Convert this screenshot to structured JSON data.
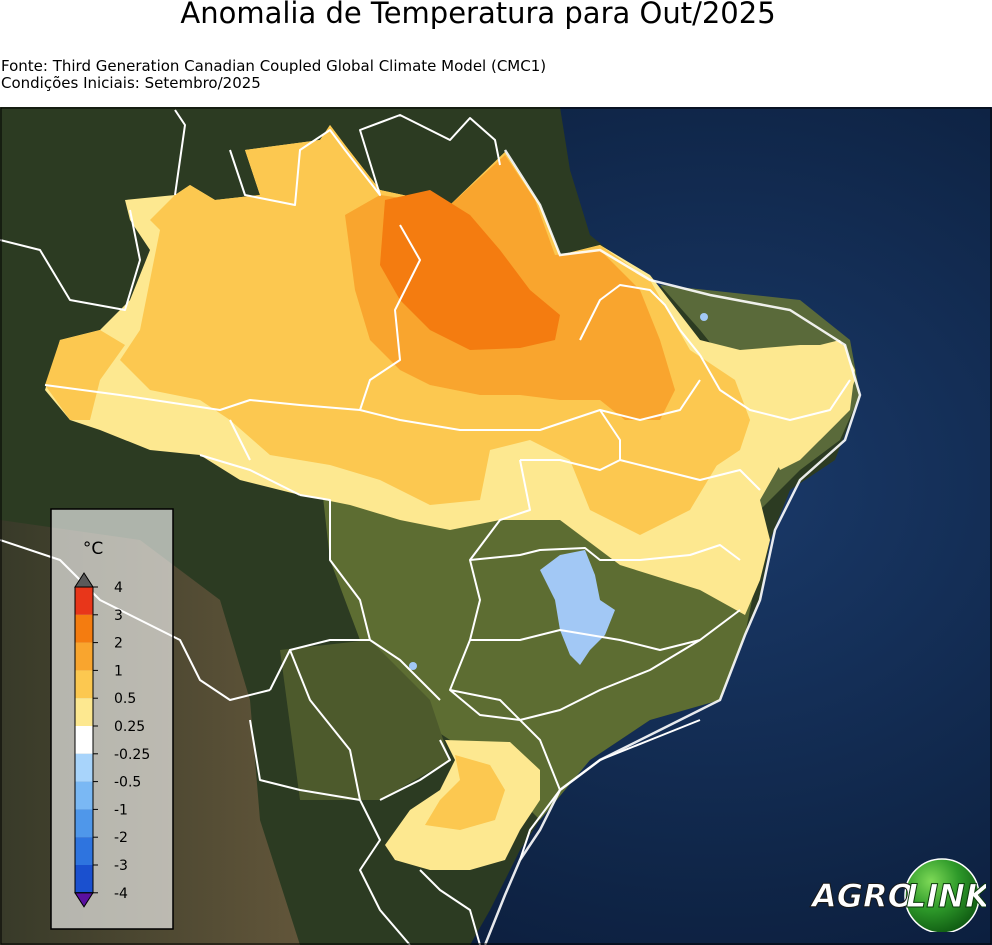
{
  "title": "Anomalia de Temperatura para Out/2025",
  "source_line": "Fonte: Third Generation Canadian Coupled Global Climate Model (CMC1)",
  "initial_conditions_line": "Condições Iniciais: Setembro/2025",
  "legend": {
    "unit": "°C",
    "levels": [
      {
        "label": "4",
        "color": "#e8361a"
      },
      {
        "label": "3",
        "color": "#f47c10"
      },
      {
        "label": "2",
        "color": "#f9a52e"
      },
      {
        "label": "1",
        "color": "#fcc850"
      },
      {
        "label": "0.5",
        "color": "#fde890"
      },
      {
        "label": "0.25",
        "color": "#ffffff"
      },
      {
        "label": "-0.25",
        "color": "#a8d4fb"
      },
      {
        "label": "-0.5",
        "color": "#7ab8f4"
      },
      {
        "label": "-1",
        "color": "#4f97ea"
      },
      {
        "label": "-2",
        "color": "#2e74df"
      },
      {
        "label": "-3",
        "color": "#1a50cf"
      },
      {
        "label": "-4",
        "color": "#6a1fb0"
      }
    ],
    "over_color": "#5a5a5a",
    "under_color": "#5a10a0"
  },
  "logo": {
    "left_text": "AGRO",
    "right_text": "LINK"
  },
  "colors": {
    "ocean": "#0d1e3a",
    "land_forest": "#2f3e23",
    "land_savanna": "#6b7a3a",
    "border": "#ffffff"
  }
}
